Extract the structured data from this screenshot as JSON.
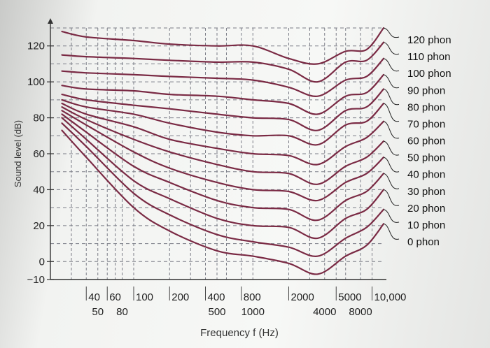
{
  "chart_data": {
    "type": "line",
    "title": "",
    "xlabel": "Frequency f (Hz)",
    "ylabel": "Sound level (dB)",
    "xscale": "log",
    "xlim": [
      20,
      12500
    ],
    "ylim": [
      -10,
      130
    ],
    "grid": true,
    "legend": "right",
    "yticks": [
      120,
      100,
      80,
      60,
      40,
      20,
      0,
      -10
    ],
    "ytick_labels": [
      "120",
      "100",
      "80",
      "60",
      "40",
      "20",
      "0",
      "−10"
    ],
    "xticks_row1": [
      {
        "value": 40,
        "label": "40"
      },
      {
        "value": 60,
        "label": "60"
      },
      {
        "value": 100,
        "label": "100"
      },
      {
        "value": 200,
        "label": "200"
      },
      {
        "value": 400,
        "label": "400"
      },
      {
        "value": 800,
        "label": "800"
      },
      {
        "value": 2000,
        "label": "2000"
      },
      {
        "value": 5000,
        "label": "5000"
      },
      {
        "value": 10000,
        "label": "10,000"
      }
    ],
    "xticks_row2": [
      {
        "value": 50,
        "label": "50"
      },
      {
        "value": 80,
        "label": "80"
      },
      {
        "value": 500,
        "label": "500"
      },
      {
        "value": 1000,
        "label": "1000"
      },
      {
        "value": 4000,
        "label": "4000"
      },
      {
        "value": 8000,
        "label": "8000"
      }
    ],
    "curve_color": "#7a2a44",
    "x": [
      25,
      40,
      100,
      200,
      500,
      1000,
      2000,
      3500,
      6000,
      9000,
      12500
    ],
    "series": [
      {
        "name": "120 phon",
        "values": [
          128,
          125,
          123,
          121,
          120,
          120,
          113,
          110,
          117,
          118,
          130
        ]
      },
      {
        "name": "110 phon",
        "values": [
          115,
          114,
          113,
          112,
          111,
          111,
          107,
          100,
          111,
          112,
          122
        ]
      },
      {
        "name": "100 phon",
        "values": [
          106,
          105,
          104,
          103,
          102,
          101,
          97,
          92,
          101,
          103,
          113
        ]
      },
      {
        "name": "90 phon",
        "values": [
          98,
          96,
          95,
          93,
          92,
          90,
          88,
          82,
          92,
          94,
          104
        ]
      },
      {
        "name": "80 phon",
        "values": [
          93,
          90,
          87,
          85,
          82,
          80,
          79,
          73,
          84,
          86,
          96
        ]
      },
      {
        "name": "70 phon",
        "values": [
          90,
          86,
          82,
          77,
          72,
          70,
          70,
          65,
          76,
          78,
          88
        ]
      },
      {
        "name": "60 phon",
        "values": [
          88,
          82,
          75,
          68,
          63,
          60,
          59,
          54,
          64,
          69,
          78
        ]
      },
      {
        "name": "50 phon",
        "values": [
          86,
          79,
          68,
          61,
          54,
          50,
          49,
          43,
          53,
          58,
          67
        ]
      },
      {
        "name": "40 phon",
        "values": [
          84,
          76,
          61,
          52,
          44,
          40,
          39,
          34,
          44,
          49,
          58
        ]
      },
      {
        "name": "30 phon",
        "values": [
          82,
          72,
          53,
          44,
          34,
          30,
          29,
          23,
          34,
          39,
          49
        ]
      },
      {
        "name": "20 phon",
        "values": [
          80,
          68,
          45,
          35,
          24,
          20,
          19,
          13,
          24,
          29,
          40
        ]
      },
      {
        "name": "10 phon",
        "values": [
          77,
          64,
          38,
          26,
          15,
          11,
          8,
          3,
          13,
          19,
          29
        ]
      },
      {
        "name": "0 phon",
        "values": [
          73,
          58,
          30,
          17,
          6,
          3,
          -1,
          -7,
          3,
          9,
          21
        ]
      }
    ]
  }
}
